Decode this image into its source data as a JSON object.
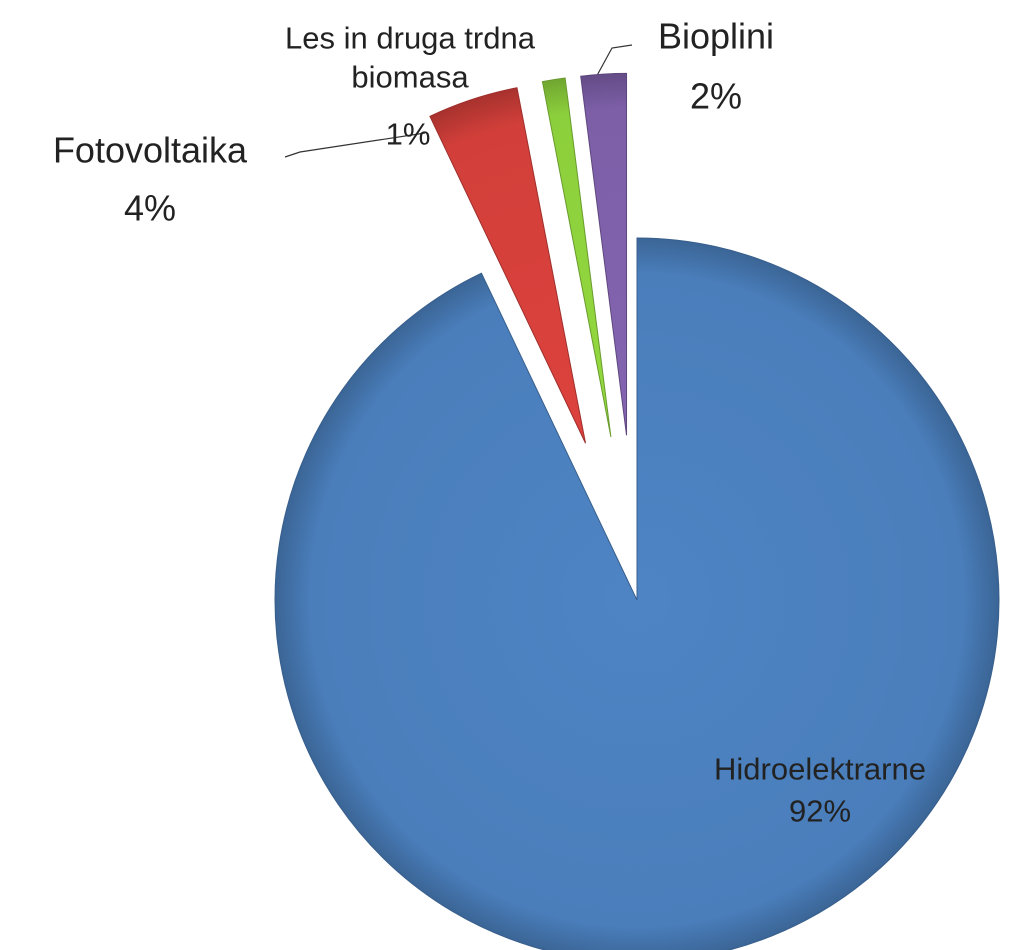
{
  "chart_data": {
    "type": "pie",
    "categories": [
      "Hidroelektrarne",
      "Fotovoltaika",
      "Les in druga trdna biomasa",
      "Bioplini"
    ],
    "values": [
      92,
      4,
      1,
      2
    ],
    "value_labels": [
      "92%",
      "4%",
      "1%",
      "2%"
    ],
    "colors": [
      "#4a7ebb",
      "#d23f3a",
      "#8ccf3c",
      "#7d5fa8"
    ]
  }
}
